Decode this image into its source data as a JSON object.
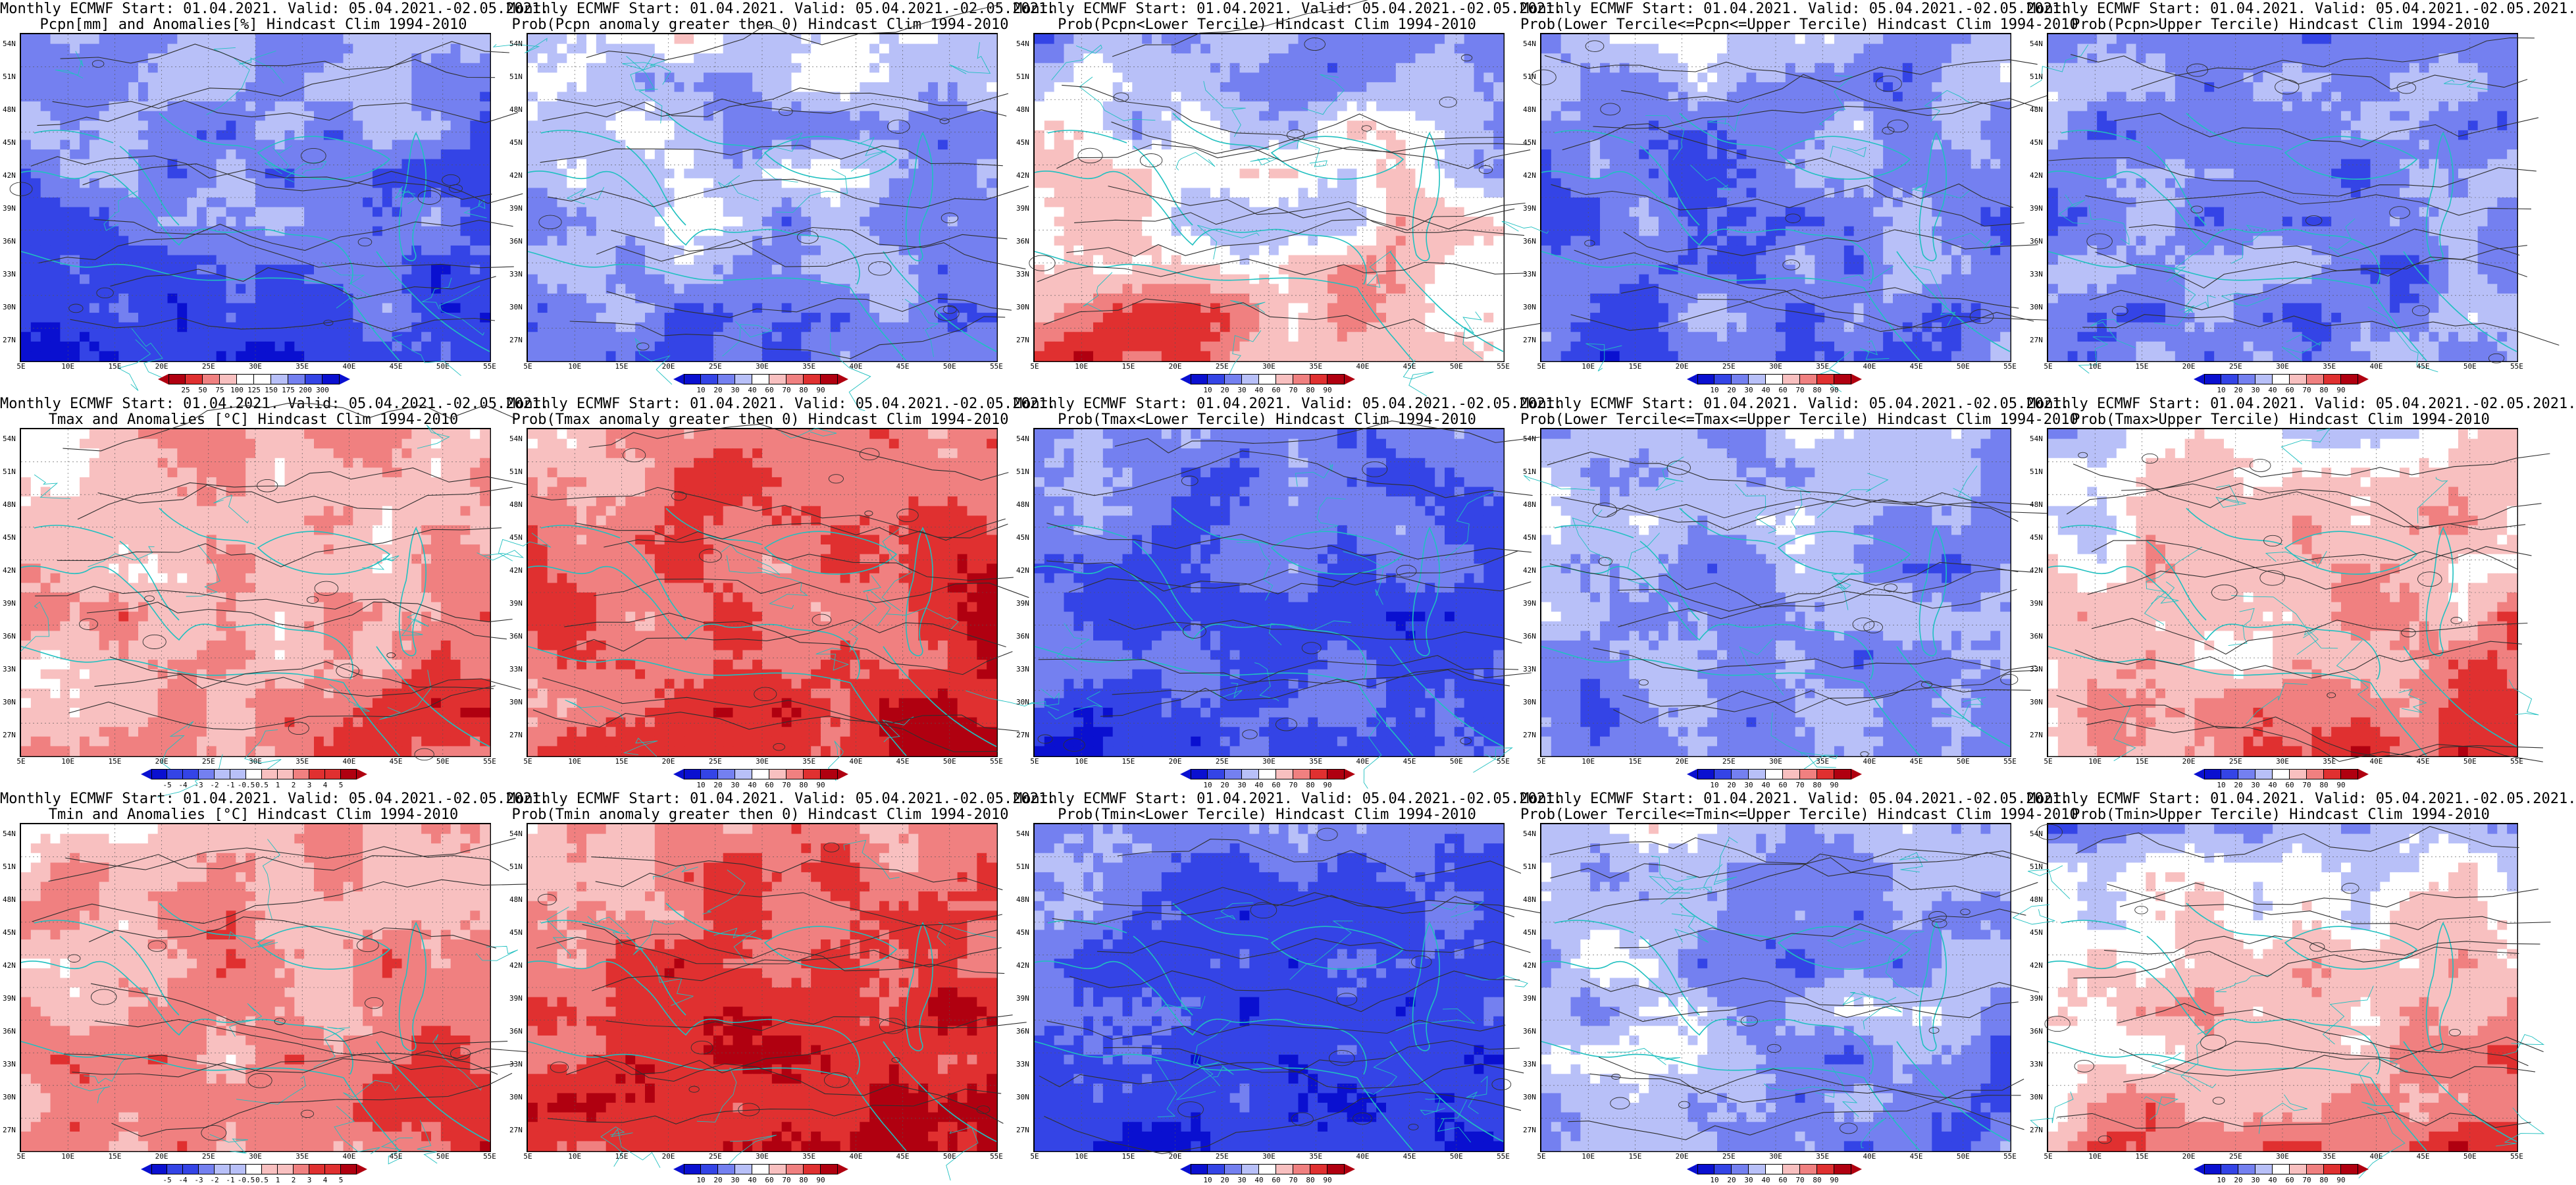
{
  "lat_labels": [
    "54N",
    "51N",
    "48N",
    "45N",
    "42N",
    "39N",
    "36N",
    "33N",
    "30N",
    "27N"
  ],
  "lon_labels": [
    "5E",
    "10E",
    "15E",
    "20E",
    "25E",
    "30E",
    "35E",
    "40E",
    "45E",
    "50E",
    "55E"
  ],
  "colors": {
    "blue_3": "#0a10d0",
    "blue_2": "#3444e6",
    "blue_1": "#7480f0",
    "blue_0": "#b8c0f8",
    "white": "#ffffff",
    "red_0": "#f8c0c0",
    "red_1": "#f08080",
    "red_2": "#e03030",
    "red_3": "#b00010",
    "coast": "#20c0c0",
    "contour": "#303030"
  },
  "scales": {
    "pcpn_anom": {
      "labels": [
        "25",
        "50",
        "75",
        "100",
        "125",
        "150",
        "175",
        "200",
        "300"
      ]
    },
    "prob": {
      "labels": [
        "10",
        "20",
        "30",
        "40",
        "60",
        "70",
        "80",
        "90"
      ]
    },
    "temp_anom": {
      "labels": [
        "-5",
        "-4",
        "-3",
        "-2",
        "-1",
        "-0.5",
        "0.5",
        "1",
        "2",
        "3",
        "4",
        "5"
      ]
    }
  },
  "panels": [
    {
      "line1": "Monthly ECMWF Start: 01.04.2021. Valid: 05.04.2021.-02.05.2021.",
      "line2": "Pcpn[mm] and Anomalies[%] Hindcast Clim 1994-2010",
      "scale": "pcpn_anom",
      "pattern": "pcpn_anom"
    },
    {
      "line1": "Monthly ECMWF Start: 01.04.2021. Valid: 05.04.2021.-02.05.2021.",
      "line2": "Prob(Pcpn anomaly greater then 0) Hindcast Clim 1994-2010",
      "scale": "prob",
      "pattern": "pcpn_prob"
    },
    {
      "line1": "Monthly ECMWF Start: 01.04.2021. Valid: 05.04.2021.-02.05.2021.",
      "line2": "Prob(Pcpn<Lower Tercile) Hindcast Clim 1994-2010",
      "scale": "prob",
      "pattern": "pcpn_lower"
    },
    {
      "line1": "Monthly ECMWF Start: 01.04.2021. Valid: 05.04.2021.-02.05.2021.",
      "line2": "Prob(Lower Tercile<=Pcpn<=Upper Tercile) Hindcast Clim 1994-2010",
      "scale": "prob",
      "pattern": "pcpn_mid"
    },
    {
      "line1": "Monthly ECMWF Start: 01.04.2021. Valid: 05.04.2021.-02.05.2021.",
      "line2": "Prob(Pcpn>Upper Tercile) Hindcast Clim 1994-2010",
      "scale": "prob",
      "pattern": "pcpn_upper"
    },
    {
      "line1": "Monthly ECMWF Start: 01.04.2021. Valid: 05.04.2021.-02.05.2021.",
      "line2": "Tmax and Anomalies [°C] Hindcast Clim 1994-2010",
      "scale": "temp_anom",
      "pattern": "tmax_anom"
    },
    {
      "line1": "Monthly ECMWF Start: 01.04.2021. Valid: 05.04.2021.-02.05.2021.",
      "line2": "Prob(Tmax anomaly greater then 0) Hindcast Clim 1994-2010",
      "scale": "prob",
      "pattern": "tmax_prob"
    },
    {
      "line1": "Monthly ECMWF Start: 01.04.2021. Valid: 05.04.2021.-02.05.2021.",
      "line2": "Prob(Tmax<Lower Tercile) Hindcast Clim 1994-2010",
      "scale": "prob",
      "pattern": "tmax_lower"
    },
    {
      "line1": "Monthly ECMWF Start: 01.04.2021. Valid: 05.04.2021.-02.05.2021.",
      "line2": "Prob(Lower Tercile<=Tmax<=Upper Tercile) Hindcast Clim 1994-2010",
      "scale": "prob",
      "pattern": "tmax_mid"
    },
    {
      "line1": "Monthly ECMWF Start: 01.04.2021. Valid: 05.04.2021.-02.05.2021.",
      "line2": "Prob(Tmax>Upper Tercile) Hindcast Clim 1994-2010",
      "scale": "prob",
      "pattern": "tmax_upper"
    },
    {
      "line1": "Monthly ECMWF Start: 01.04.2021. Valid: 05.04.2021.-02.05.2021.",
      "line2": "Tmin and Anomalies [°C] Hindcast Clim 1994-2010",
      "scale": "temp_anom",
      "pattern": "tmin_anom"
    },
    {
      "line1": "Monthly ECMWF Start: 01.04.2021. Valid: 05.04.2021.-02.05.2021.",
      "line2": "Prob(Tmin anomaly greater then 0) Hindcast Clim 1994-2010",
      "scale": "prob",
      "pattern": "tmin_prob"
    },
    {
      "line1": "Monthly ECMWF Start: 01.04.2021. Valid: 05.04.2021.-02.05.2021.",
      "line2": "Prob(Tmin<Lower Tercile) Hindcast Clim 1994-2010",
      "scale": "prob",
      "pattern": "tmin_lower"
    },
    {
      "line1": "Monthly ECMWF Start: 01.04.2021. Valid: 05.04.2021.-02.05.2021.",
      "line2": "Prob(Lower Tercile<=Tmin<=Upper Tercile) Hindcast Clim 1994-2010",
      "scale": "prob",
      "pattern": "tmin_mid"
    },
    {
      "line1": "Monthly ECMWF Start: 01.04.2021. Valid: 05.04.2021.-02.05.2021.",
      "line2": "Prob(Tmin>Upper Tercile) Hindcast Clim 1994-2010",
      "scale": "prob",
      "pattern": "tmin_upper"
    }
  ]
}
